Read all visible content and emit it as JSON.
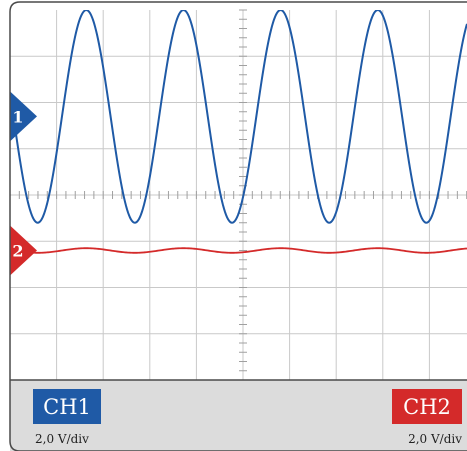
{
  "channels": [
    {
      "id": "1",
      "label": "CH1",
      "scale": "2,0 V/div",
      "color": "#1f5aa6",
      "amplitude_div": 2.3,
      "offset_div": 1.7,
      "cycles_on_screen": 4.6
    },
    {
      "id": "2",
      "label": "CH2",
      "scale": "2,0 V/div",
      "color": "#d42a2a",
      "amplitude_div": 0.05,
      "offset_div": -1.2,
      "cycles_on_screen": 4.6
    }
  ],
  "grid": {
    "horizontal_divisions": 10,
    "vertical_divisions": 8
  },
  "colors": {
    "grid_line": "#c9c9c9",
    "tick": "#a0a0a0",
    "bottom_panel": "#dcdcdc",
    "frame": "#4a4a4a"
  }
}
